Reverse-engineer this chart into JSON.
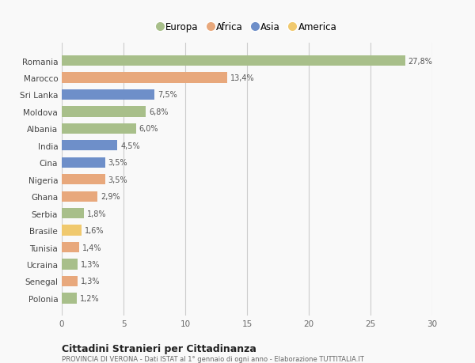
{
  "countries": [
    "Romania",
    "Marocco",
    "Sri Lanka",
    "Moldova",
    "Albania",
    "India",
    "Cina",
    "Nigeria",
    "Ghana",
    "Serbia",
    "Brasile",
    "Tunisia",
    "Ucraina",
    "Senegal",
    "Polonia"
  ],
  "values": [
    27.8,
    13.4,
    7.5,
    6.8,
    6.0,
    4.5,
    3.5,
    3.5,
    2.9,
    1.8,
    1.6,
    1.4,
    1.3,
    1.3,
    1.2
  ],
  "labels": [
    "27,8%",
    "13,4%",
    "7,5%",
    "6,8%",
    "6,0%",
    "4,5%",
    "3,5%",
    "3,5%",
    "2,9%",
    "1,8%",
    "1,6%",
    "1,4%",
    "1,3%",
    "1,3%",
    "1,2%"
  ],
  "continents": [
    "Europa",
    "Africa",
    "Asia",
    "Europa",
    "Europa",
    "Asia",
    "Asia",
    "Africa",
    "Africa",
    "Europa",
    "America",
    "Africa",
    "Europa",
    "Africa",
    "Europa"
  ],
  "colors": {
    "Europa": "#a8bf8a",
    "Africa": "#e8a87c",
    "Asia": "#6e8fc9",
    "America": "#f0c96e"
  },
  "legend_order": [
    "Europa",
    "Africa",
    "Asia",
    "America"
  ],
  "xlim": [
    0,
    30
  ],
  "xticks": [
    0,
    5,
    10,
    15,
    20,
    25,
    30
  ],
  "title": "Cittadini Stranieri per Cittadinanza",
  "subtitle": "PROVINCIA DI VERONA - Dati ISTAT al 1° gennaio di ogni anno - Elaborazione TUTTITALIA.IT",
  "background_color": "#f9f9f9",
  "grid_color": "#cccccc",
  "bar_height": 0.62
}
